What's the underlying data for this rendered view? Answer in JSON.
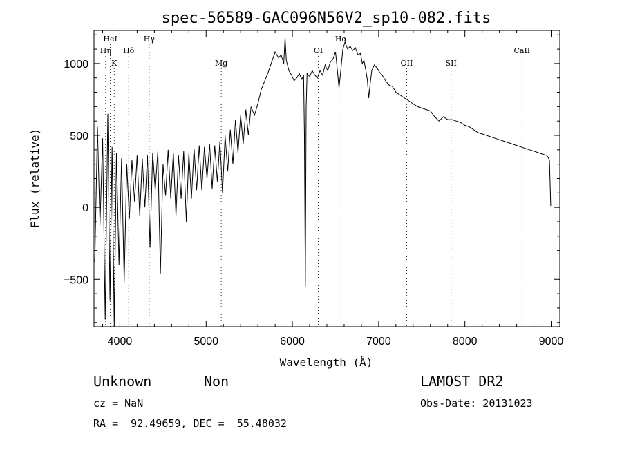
{
  "chart_data": {
    "type": "line",
    "title": "spec-56589-GAC096N56V2_sp10-082.fits",
    "xlabel": "Wavelength (Å)",
    "ylabel": "Flux (relative)",
    "xlim": [
      3700,
      9100
    ],
    "ylim": [
      -830,
      1230
    ],
    "xticks": [
      4000,
      5000,
      6000,
      7000,
      8000,
      9000
    ],
    "xtick_labels": [
      "4000",
      "5000",
      "6000",
      "7000",
      "8000",
      "9000"
    ],
    "yticks": [
      -500,
      0,
      500,
      1000
    ],
    "ytick_labels": [
      "−500",
      "0",
      "500",
      "1000"
    ],
    "grid": false,
    "spectral_lines": [
      {
        "name": "HeI",
        "wavelength": 3889,
        "row": 0
      },
      {
        "name": "Hη",
        "wavelength": 3835,
        "row": 1
      },
      {
        "name": "K",
        "wavelength": 3934,
        "row": 2
      },
      {
        "name": "Hδ",
        "wavelength": 4102,
        "row": 1
      },
      {
        "name": "Hγ",
        "wavelength": 4340,
        "row": 0
      },
      {
        "name": "Mg",
        "wavelength": 5175,
        "row": 2
      },
      {
        "name": "OI",
        "wavelength": 6300,
        "row": 1
      },
      {
        "name": "Hα",
        "wavelength": 6563,
        "row": 0
      },
      {
        "name": "OII",
        "wavelength": 7325,
        "row": 2
      },
      {
        "name": "SII",
        "wavelength": 7840,
        "row": 2
      },
      {
        "name": "CaII",
        "wavelength": 8662,
        "row": 1
      }
    ],
    "series": [
      {
        "points": [
          [
            3710,
            -380
          ],
          [
            3740,
            560
          ],
          [
            3770,
            -120
          ],
          [
            3800,
            480
          ],
          [
            3830,
            -780
          ],
          [
            3860,
            650
          ],
          [
            3885,
            -650
          ],
          [
            3910,
            420
          ],
          [
            3935,
            -830
          ],
          [
            3960,
            380
          ],
          [
            3990,
            -400
          ],
          [
            4020,
            340
          ],
          [
            4050,
            -520
          ],
          [
            4080,
            300
          ],
          [
            4110,
            -80
          ],
          [
            4140,
            330
          ],
          [
            4170,
            40
          ],
          [
            4200,
            360
          ],
          [
            4230,
            -60
          ],
          [
            4260,
            340
          ],
          [
            4290,
            0
          ],
          [
            4320,
            360
          ],
          [
            4350,
            -280
          ],
          [
            4380,
            380
          ],
          [
            4410,
            120
          ],
          [
            4440,
            390
          ],
          [
            4470,
            -460
          ],
          [
            4500,
            300
          ],
          [
            4530,
            80
          ],
          [
            4560,
            400
          ],
          [
            4590,
            60
          ],
          [
            4620,
            380
          ],
          [
            4650,
            -60
          ],
          [
            4680,
            360
          ],
          [
            4710,
            60
          ],
          [
            4740,
            390
          ],
          [
            4770,
            -100
          ],
          [
            4800,
            380
          ],
          [
            4830,
            60
          ],
          [
            4860,
            410
          ],
          [
            4890,
            120
          ],
          [
            4920,
            430
          ],
          [
            4950,
            120
          ],
          [
            4980,
            420
          ],
          [
            5010,
            200
          ],
          [
            5040,
            440
          ],
          [
            5070,
            130
          ],
          [
            5100,
            430
          ],
          [
            5130,
            180
          ],
          [
            5160,
            460
          ],
          [
            5190,
            100
          ],
          [
            5220,
            500
          ],
          [
            5250,
            250
          ],
          [
            5280,
            540
          ],
          [
            5310,
            300
          ],
          [
            5340,
            610
          ],
          [
            5370,
            380
          ],
          [
            5400,
            640
          ],
          [
            5430,
            440
          ],
          [
            5460,
            680
          ],
          [
            5490,
            500
          ],
          [
            5520,
            700
          ],
          [
            5560,
            640
          ],
          [
            5600,
            720
          ],
          [
            5640,
            820
          ],
          [
            5680,
            880
          ],
          [
            5720,
            940
          ],
          [
            5760,
            1010
          ],
          [
            5800,
            1080
          ],
          [
            5840,
            1040
          ],
          [
            5870,
            1060
          ],
          [
            5900,
            1000
          ],
          [
            5915,
            1180
          ],
          [
            5930,
            1020
          ],
          [
            5960,
            950
          ],
          [
            5990,
            920
          ],
          [
            6020,
            880
          ],
          [
            6050,
            900
          ],
          [
            6080,
            930
          ],
          [
            6110,
            890
          ],
          [
            6130,
            920
          ],
          [
            6140,
            500
          ],
          [
            6150,
            -550
          ],
          [
            6160,
            700
          ],
          [
            6170,
            930
          ],
          [
            6200,
            910
          ],
          [
            6230,
            950
          ],
          [
            6260,
            920
          ],
          [
            6290,
            900
          ],
          [
            6320,
            950
          ],
          [
            6350,
            920
          ],
          [
            6380,
            990
          ],
          [
            6410,
            950
          ],
          [
            6440,
            1010
          ],
          [
            6470,
            1030
          ],
          [
            6500,
            1080
          ],
          [
            6520,
            960
          ],
          [
            6540,
            830
          ],
          [
            6563,
            960
          ],
          [
            6585,
            1100
          ],
          [
            6610,
            1150
          ],
          [
            6640,
            1100
          ],
          [
            6670,
            1120
          ],
          [
            6700,
            1090
          ],
          [
            6730,
            1110
          ],
          [
            6760,
            1060
          ],
          [
            6790,
            1070
          ],
          [
            6810,
            1000
          ],
          [
            6830,
            1020
          ],
          [
            6855,
            940
          ],
          [
            6870,
            880
          ],
          [
            6885,
            760
          ],
          [
            6900,
            850
          ],
          [
            6920,
            950
          ],
          [
            6950,
            990
          ],
          [
            6980,
            970
          ],
          [
            7010,
            940
          ],
          [
            7040,
            920
          ],
          [
            7080,
            880
          ],
          [
            7120,
            850
          ],
          [
            7160,
            840
          ],
          [
            7200,
            800
          ],
          [
            7250,
            780
          ],
          [
            7300,
            760
          ],
          [
            7350,
            740
          ],
          [
            7400,
            720
          ],
          [
            7450,
            700
          ],
          [
            7500,
            690
          ],
          [
            7550,
            680
          ],
          [
            7600,
            670
          ],
          [
            7650,
            630
          ],
          [
            7700,
            600
          ],
          [
            7750,
            630
          ],
          [
            7800,
            610
          ],
          [
            7850,
            610
          ],
          [
            7900,
            600
          ],
          [
            7950,
            590
          ],
          [
            8000,
            570
          ],
          [
            8050,
            560
          ],
          [
            8100,
            540
          ],
          [
            8150,
            520
          ],
          [
            8200,
            510
          ],
          [
            8250,
            500
          ],
          [
            8300,
            490
          ],
          [
            8350,
            480
          ],
          [
            8400,
            470
          ],
          [
            8450,
            460
          ],
          [
            8500,
            450
          ],
          [
            8550,
            440
          ],
          [
            8600,
            430
          ],
          [
            8650,
            420
          ],
          [
            8700,
            410
          ],
          [
            8750,
            400
          ],
          [
            8800,
            390
          ],
          [
            8850,
            380
          ],
          [
            8900,
            370
          ],
          [
            8950,
            360
          ],
          [
            8980,
            330
          ],
          [
            8995,
            10
          ]
        ]
      }
    ]
  },
  "info": {
    "object_class": "Unknown",
    "subclass": "Non",
    "survey": "LAMOST DR2",
    "redshift": "cz = NaN",
    "obs_date": "Obs-Date: 20131023",
    "coords": "RA =  92.49659, DEC =  55.48032"
  }
}
